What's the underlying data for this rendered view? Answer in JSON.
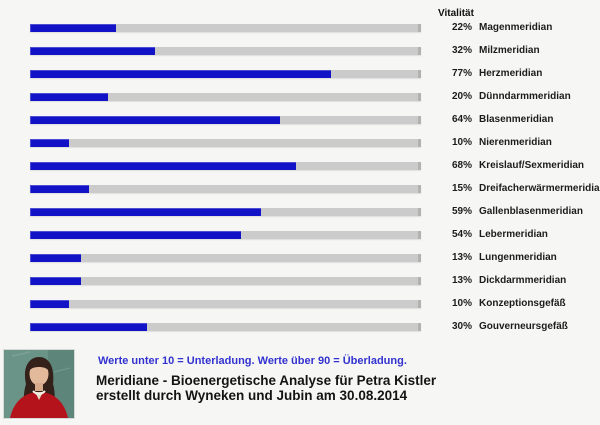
{
  "chart_data": {
    "type": "bar",
    "orientation": "horizontal",
    "title": "Vitalität",
    "xlim": [
      0,
      100
    ],
    "bar_color": "#1212c6",
    "track_color": "#cbcbcb",
    "categories": [
      "Magenmeridian",
      "Milzmeridian",
      "Herzmeridian",
      "Dünndarmmeridian",
      "Blasenmeridian",
      "Nierenmeridian",
      "Kreislauf/Sexmeridian",
      "Dreifacherwärmermeridian",
      "Gallenblasenmeridian",
      "Lebermeridian",
      "Lungenmeridian",
      "Dickdarmmeridian",
      "Konzeptionsgefäß",
      "Gouverneursgefäß"
    ],
    "values": [
      22,
      32,
      77,
      20,
      64,
      10,
      68,
      15,
      59,
      54,
      13,
      13,
      10,
      30
    ],
    "value_labels": [
      "22%",
      "32%",
      "77%",
      "20%",
      "64%",
      "10%",
      "68%",
      "15%",
      "59%",
      "54%",
      "13%",
      "13%",
      "10%",
      "30%"
    ]
  },
  "legend_note": "Werte unter 10 = Unterladung. Werte über 90 = Überladung.",
  "footer": {
    "title_line1": "Meridiane - Bioenergetische Analyse für Petra Kistler",
    "title_line2": "erstellt durch Wyneken und Jubin am 30.08.2014"
  },
  "portrait_photo": "woman-in-red-blazer-portrait"
}
